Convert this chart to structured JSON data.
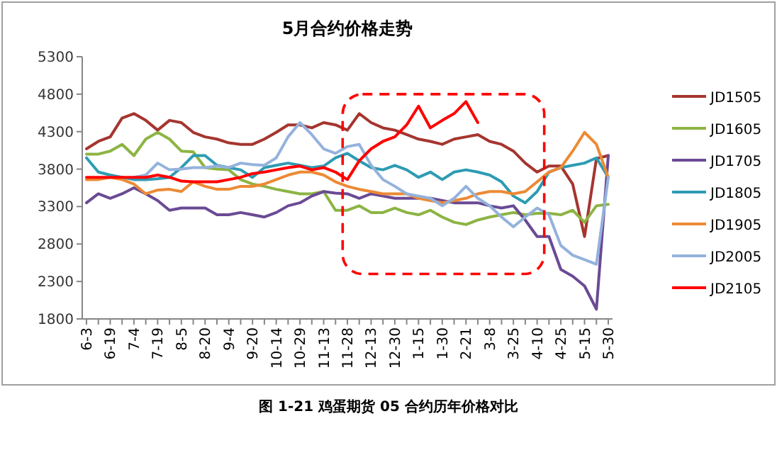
{
  "chart_data": {
    "type": "line",
    "title": "5月合约价格走势",
    "categories": [
      "6-3",
      null,
      "6-19",
      null,
      "7-4",
      null,
      "7-19",
      null,
      "8-5",
      null,
      "8-20",
      null,
      "9-4",
      null,
      "9-20",
      null,
      "10-14",
      null,
      "10-29",
      null,
      "11-13",
      null,
      "11-28",
      null,
      "12-13",
      null,
      "12-30",
      null,
      "1-15",
      null,
      "1-30",
      null,
      "2-21",
      null,
      "3-8",
      null,
      "3-25",
      null,
      "4-10",
      null,
      "4-25",
      null,
      "5-15",
      null,
      "5-30"
    ],
    "ylim": [
      1800,
      5300
    ],
    "yticks": [
      1800,
      2300,
      2800,
      3300,
      3800,
      4300,
      4800,
      5300
    ],
    "legend": "right",
    "series": [
      {
        "name": "JD1505",
        "color": "#a5352f",
        "values": [
          4070,
          4170,
          4230,
          4480,
          4540,
          4450,
          4320,
          4450,
          4420,
          4290,
          4230,
          4200,
          4150,
          4130,
          4130,
          4200,
          4290,
          4390,
          4390,
          4350,
          4420,
          4390,
          4320,
          4540,
          4420,
          4350,
          4320,
          4260,
          4200,
          4170,
          4130,
          4200,
          4230,
          4260,
          4170,
          4130,
          4040,
          3880,
          3760,
          3840,
          3840,
          3600,
          2900,
          3940,
          3980
        ]
      },
      {
        "name": "JD1605",
        "color": "#8cb443",
        "values": [
          4000,
          4000,
          4040,
          4130,
          3980,
          4200,
          4290,
          4200,
          4040,
          4030,
          3820,
          3800,
          3790,
          3660,
          3600,
          3570,
          3530,
          3500,
          3470,
          3470,
          3500,
          3250,
          3250,
          3310,
          3220,
          3220,
          3280,
          3220,
          3190,
          3250,
          3160,
          3090,
          3060,
          3120,
          3160,
          3190,
          3220,
          3190,
          3210,
          3210,
          3190,
          3250,
          3090,
          3310,
          3330
        ]
      },
      {
        "name": "JD1705",
        "color": "#6a4a94",
        "values": [
          3350,
          3470,
          3410,
          3470,
          3550,
          3470,
          3380,
          3250,
          3280,
          3280,
          3280,
          3190,
          3190,
          3220,
          3190,
          3160,
          3220,
          3310,
          3350,
          3440,
          3500,
          3480,
          3470,
          3410,
          3470,
          3440,
          3410,
          3410,
          3410,
          3410,
          3380,
          3350,
          3350,
          3350,
          3310,
          3280,
          3310,
          3120,
          2900,
          2900,
          2460,
          2370,
          2240,
          1930,
          3980
        ]
      },
      {
        "name": "JD1805",
        "color": "#2e9bb3",
        "values": [
          3950,
          3760,
          3720,
          3690,
          3660,
          3660,
          3670,
          3690,
          3820,
          3980,
          3980,
          3850,
          3820,
          3790,
          3690,
          3820,
          3850,
          3880,
          3850,
          3820,
          3840,
          3950,
          4010,
          3910,
          3820,
          3790,
          3850,
          3790,
          3690,
          3760,
          3660,
          3760,
          3790,
          3760,
          3720,
          3630,
          3440,
          3350,
          3500,
          3760,
          3820,
          3850,
          3880,
          3950,
          3690
        ]
      },
      {
        "name": "JD1905",
        "color": "#ec8a35",
        "values": [
          3660,
          3660,
          3690,
          3660,
          3600,
          3470,
          3520,
          3530,
          3500,
          3630,
          3570,
          3530,
          3530,
          3570,
          3570,
          3600,
          3660,
          3720,
          3760,
          3760,
          3720,
          3630,
          3570,
          3530,
          3500,
          3470,
          3470,
          3470,
          3410,
          3380,
          3350,
          3380,
          3410,
          3470,
          3500,
          3500,
          3470,
          3500,
          3630,
          3760,
          3820,
          4040,
          4290,
          4130,
          3690
        ]
      },
      {
        "name": "JD2005",
        "color": "#94b2dc",
        "values": [
          null,
          null,
          null,
          null,
          3690,
          3720,
          3880,
          3790,
          3800,
          3820,
          3820,
          3840,
          3820,
          3880,
          3860,
          3850,
          3950,
          4230,
          4420,
          4260,
          4070,
          4010,
          4100,
          4130,
          3850,
          3660,
          3570,
          3470,
          3440,
          3410,
          3310,
          3410,
          3570,
          3410,
          3310,
          3160,
          3030,
          3160,
          3280,
          3190,
          2780,
          2650,
          2590,
          2530,
          3690
        ]
      },
      {
        "name": "JD2105",
        "color": "#ff0000",
        "values": [
          3690,
          3690,
          3690,
          3690,
          3690,
          3690,
          3720,
          3690,
          3640,
          3630,
          3630,
          3630,
          3660,
          3690,
          3740,
          3760,
          3790,
          3820,
          3840,
          3790,
          3820,
          3760,
          3660,
          3910,
          4070,
          4170,
          4230,
          4390,
          4640,
          4350,
          4450,
          4540,
          4700,
          4420,
          null,
          null,
          null,
          null,
          null,
          null,
          null,
          null,
          null,
          null,
          null
        ]
      }
    ],
    "annotations": [
      "图 1-21 鸡蛋期货 05 合约历年价格对比"
    ]
  }
}
